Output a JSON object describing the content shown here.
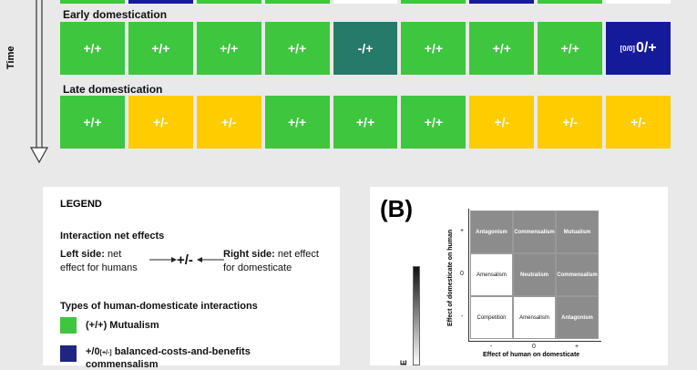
{
  "time_axis": {
    "label": "Time"
  },
  "rows": [
    {
      "title": "Early domestication",
      "cells": [
        {
          "text": "+/+",
          "sub": "",
          "color": "#3ec63e"
        },
        {
          "text": "+/+",
          "sub": "",
          "color": "#3ec63e"
        },
        {
          "text": "+/+",
          "sub": "",
          "color": "#3ec63e"
        },
        {
          "text": "+/+",
          "sub": "",
          "color": "#3ec63e"
        },
        {
          "text": "-/+",
          "sub": "",
          "color": "#267a6a"
        },
        {
          "text": "+/+",
          "sub": "",
          "color": "#3ec63e"
        },
        {
          "text": "+/+",
          "sub": "",
          "color": "#3ec63e"
        },
        {
          "text": "+/+",
          "sub": "",
          "color": "#3ec63e"
        },
        {
          "text": "0/+",
          "sub": "[0/0]",
          "color": "#141a9a"
        }
      ]
    },
    {
      "title": "Late domestication",
      "cells": [
        {
          "text": "+/+",
          "sub": "",
          "color": "#3ec63e"
        },
        {
          "text": "+/-",
          "sub": "",
          "color": "#ffcc00"
        },
        {
          "text": "+/-",
          "sub": "",
          "color": "#ffcc00"
        },
        {
          "text": "+/+",
          "sub": "",
          "color": "#3ec63e"
        },
        {
          "text": "+/+",
          "sub": "",
          "color": "#3ec63e"
        },
        {
          "text": "+/+",
          "sub": "",
          "color": "#3ec63e"
        },
        {
          "text": "+/-",
          "sub": "",
          "color": "#ffcc00"
        },
        {
          "text": "+/-",
          "sub": "",
          "color": "#ffcc00"
        },
        {
          "text": "+/-",
          "sub": "",
          "color": "#ffcc00"
        }
      ]
    }
  ],
  "legend": {
    "title": "LEGEND",
    "net_effects_heading": "Interaction net effects",
    "left_side_bold": "Left side:",
    "left_side_rest": " net",
    "left_side_line2": "effect for humans",
    "symbol": "+/-",
    "right_side_bold": "Right side:",
    "right_side_rest": " net effect",
    "right_side_line2": "for domesticate",
    "types_heading": "Types of human-domesticate interactions",
    "types": [
      {
        "label": "(+/+) Mutualism",
        "color": "#3ec63e"
      },
      {
        "label_main": "+/0",
        "label_sub": "[+/-]",
        "label_rest": " balanced-costs-and-benefits",
        "label_line2": "commensalism",
        "color": "#1f2580"
      }
    ]
  },
  "panel_b": {
    "label": "(B)",
    "y_axis_label": "Effect of domesticate on human",
    "x_axis_label": "Effect of human on domesticate",
    "x_ticks": [
      "-",
      "0",
      "+"
    ],
    "y_ticks": [
      "+",
      "0",
      "-"
    ],
    "matrix": [
      [
        {
          "text": "Antagonism",
          "fill": "#8c8c8c",
          "color": "#ffffff"
        },
        {
          "text": "Commensalism",
          "fill": "#8c8c8c",
          "color": "#ffffff"
        },
        {
          "text": "Mutualism",
          "fill": "#8c8c8c",
          "color": "#ffffff"
        }
      ],
      [
        {
          "text": "Amensalism",
          "fill": "#ffffff",
          "color": "#111111"
        },
        {
          "text": "Neutralism",
          "fill": "#8c8c8c",
          "color": "#ffffff"
        },
        {
          "text": "Commensalism",
          "fill": "#8c8c8c",
          "color": "#ffffff"
        }
      ],
      [
        {
          "text": "Competition",
          "fill": "#ffffff",
          "color": "#111111"
        },
        {
          "text": "Amensalism",
          "fill": "#ffffff",
          "color": "#111111"
        },
        {
          "text": "Antagonism",
          "fill": "#8c8c8c",
          "color": "#ffffff"
        }
      ]
    ],
    "scale_label_partial": "E"
  }
}
